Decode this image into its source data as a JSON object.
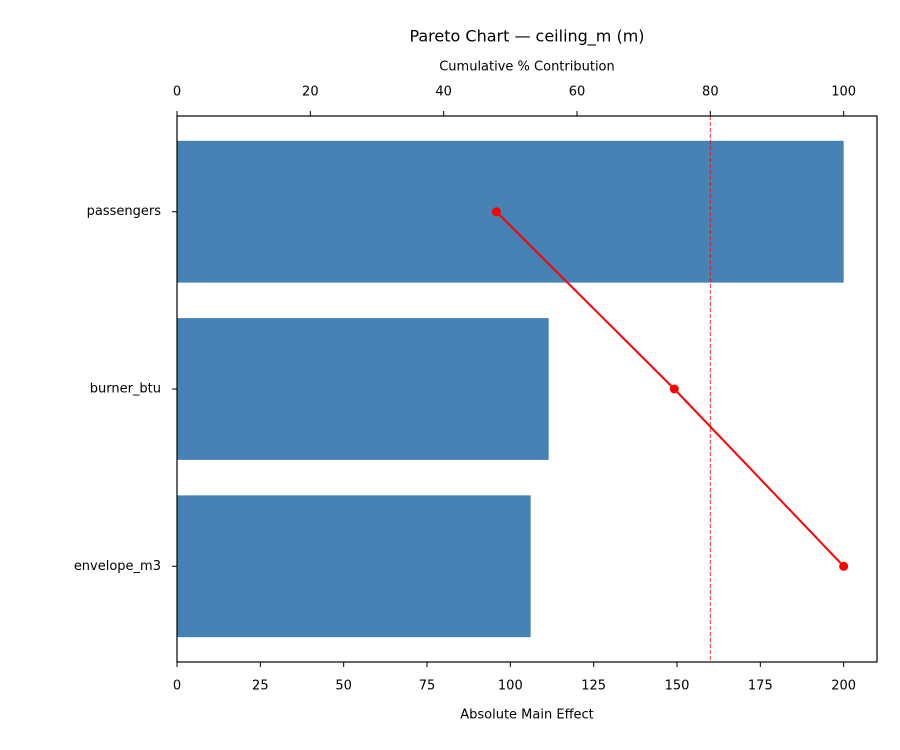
{
  "chart_data": {
    "type": "pareto",
    "title": "Pareto Chart — ceiling_m (m)",
    "xlabel": "Absolute Main Effect",
    "x2label": "Cumulative % Contribution",
    "categories": [
      "passengers",
      "burner_btu",
      "envelope_m3"
    ],
    "values": [
      200,
      111.5,
      106.1
    ],
    "color": "#4682b4",
    "xlim": [
      0,
      210
    ],
    "xticks": [
      0,
      25,
      50,
      75,
      100,
      125,
      150,
      175,
      200
    ],
    "cumulative": {
      "values": [
        47.9,
        74.6,
        100
      ],
      "color": "#ff0000",
      "axis": "x2"
    },
    "x2lim": [
      0,
      105
    ],
    "x2ticks": [
      0,
      20,
      40,
      60,
      80,
      100
    ],
    "threshold": {
      "value": 80,
      "color": "#ff0000",
      "axis": "x2"
    }
  }
}
